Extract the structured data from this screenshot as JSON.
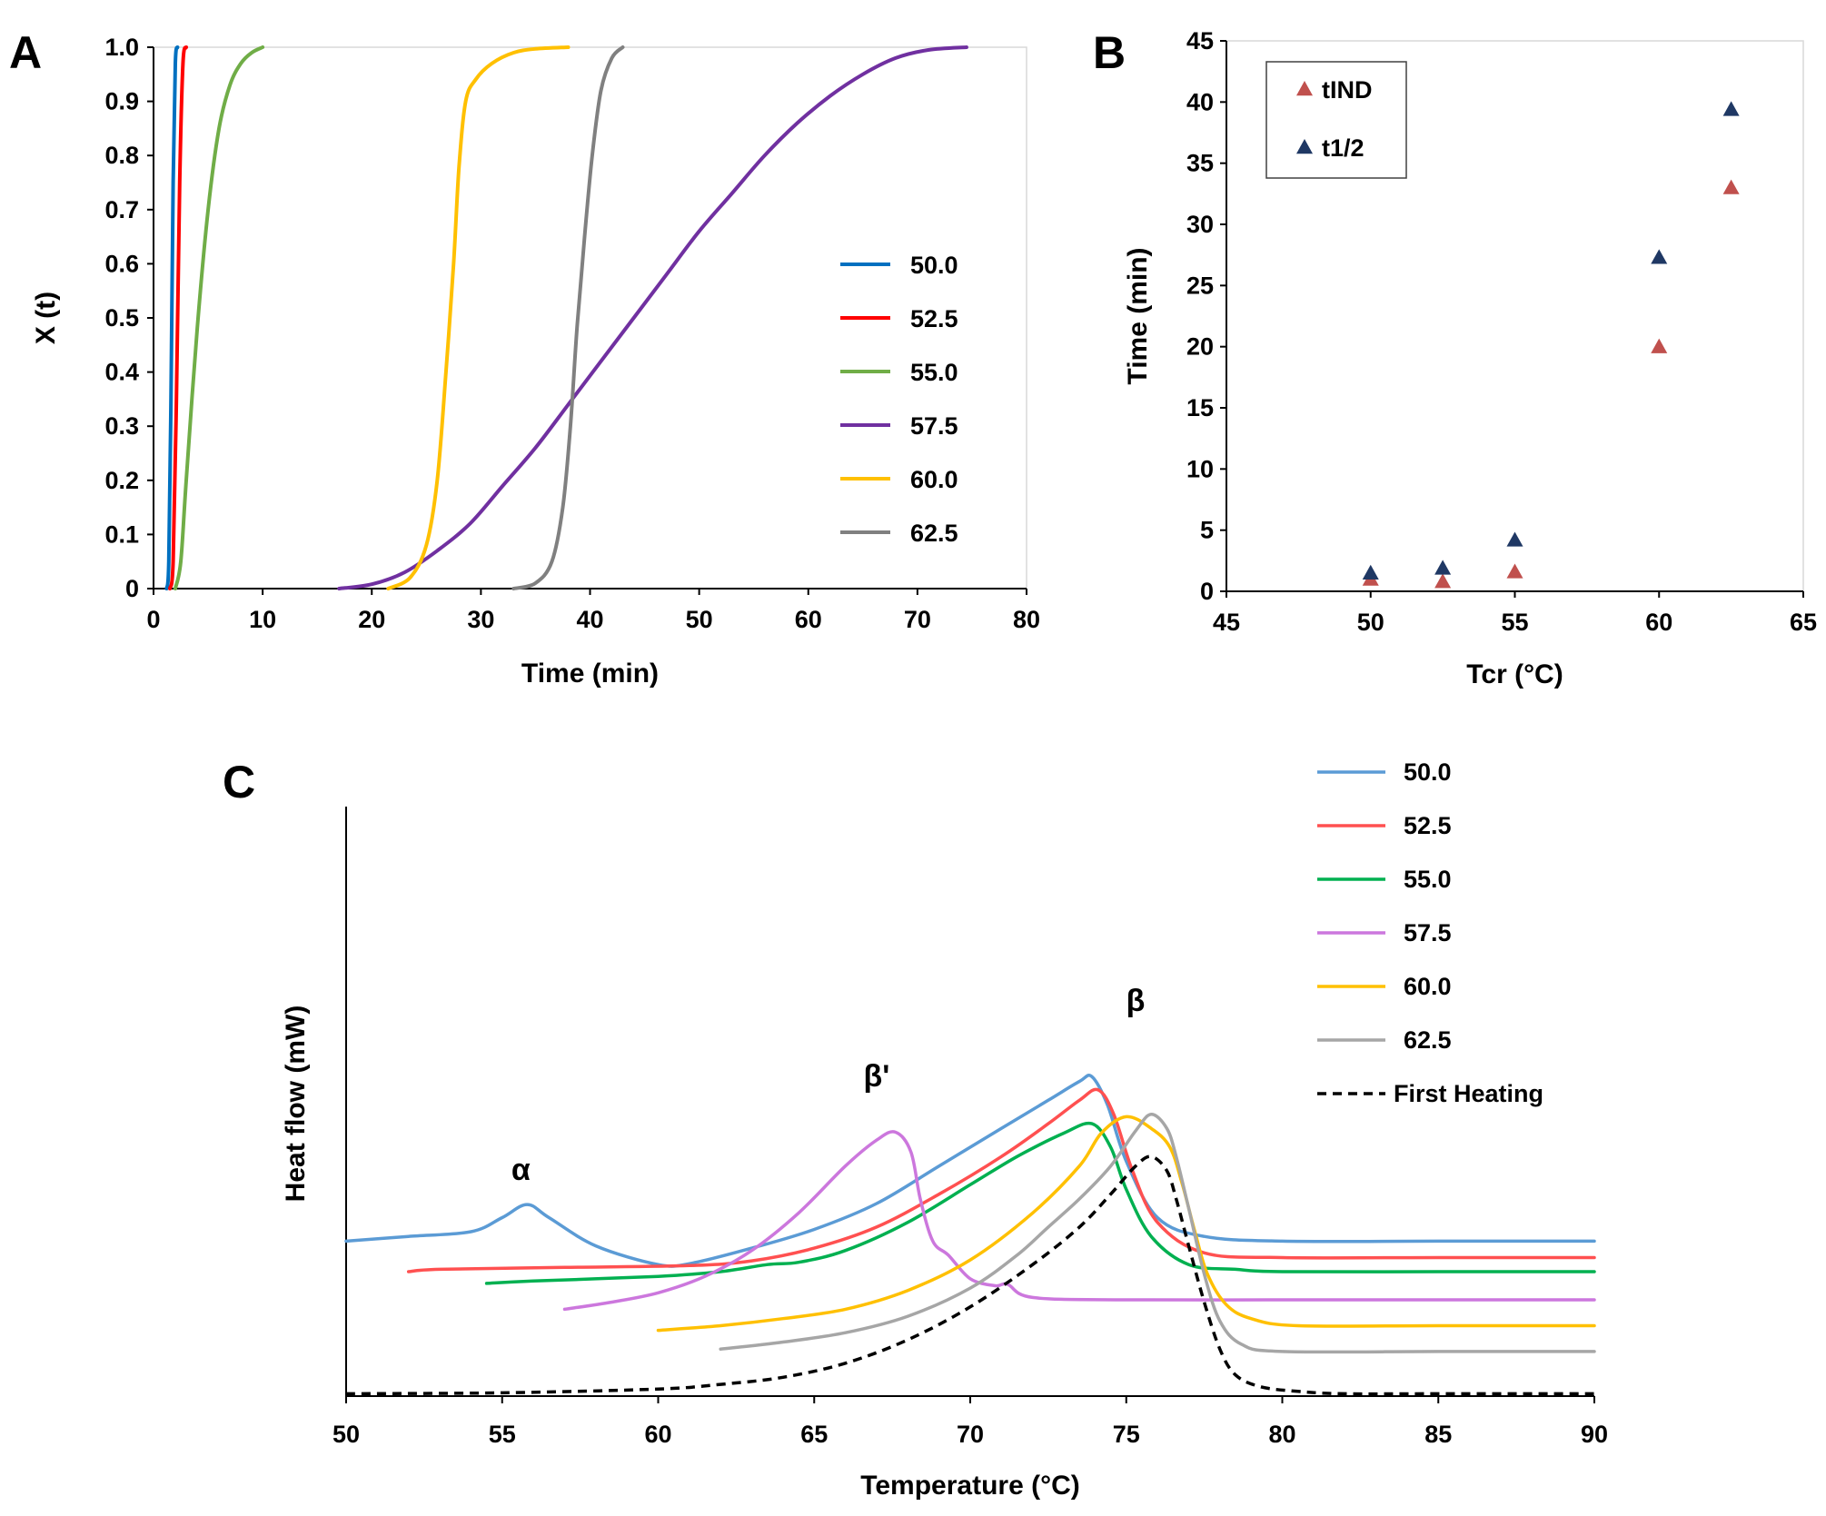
{
  "chart_data": [
    {
      "id": "A",
      "type": "line",
      "panel_label": "A",
      "xlabel": "Time (min)",
      "ylabel": "X (t)",
      "xlim": [
        0,
        80
      ],
      "ylim": [
        0,
        1
      ],
      "xticks": [
        "0",
        "10",
        "20",
        "30",
        "40",
        "50",
        "60",
        "70",
        "80"
      ],
      "yticks": [
        "0",
        "0.1",
        "0.2",
        "0.3",
        "0.4",
        "0.5",
        "0.6",
        "0.7",
        "0.8",
        "0.9",
        "1.0"
      ],
      "legend_position": "right",
      "series": [
        {
          "name": "50.0",
          "color": "#0070C0",
          "x": [
            1.2,
            1.4,
            1.6,
            1.8,
            2.0,
            2.2
          ],
          "y": [
            0,
            0.05,
            0.35,
            0.75,
            0.97,
            1.0
          ]
        },
        {
          "name": "52.5",
          "color": "#FF0000",
          "x": [
            1.5,
            1.8,
            2.1,
            2.4,
            2.7,
            3.0
          ],
          "y": [
            0,
            0.05,
            0.35,
            0.75,
            0.97,
            1.0
          ]
        },
        {
          "name": "55.0",
          "color": "#70AD47",
          "x": [
            2.0,
            2.5,
            3.0,
            4.0,
            5.0,
            6.0,
            7.0,
            8.0,
            9.0,
            10.0
          ],
          "y": [
            0,
            0.05,
            0.2,
            0.48,
            0.7,
            0.85,
            0.93,
            0.97,
            0.99,
            1.0
          ]
        },
        {
          "name": "57.5",
          "color": "#7030A0",
          "x": [
            17,
            20,
            23,
            26,
            29,
            32,
            35,
            38,
            41,
            44,
            47,
            50,
            53,
            56,
            59,
            62,
            65,
            68,
            71,
            74.5
          ],
          "y": [
            0,
            0.008,
            0.03,
            0.07,
            0.12,
            0.19,
            0.26,
            0.34,
            0.42,
            0.5,
            0.58,
            0.66,
            0.73,
            0.8,
            0.86,
            0.91,
            0.95,
            0.98,
            0.995,
            1.0
          ]
        },
        {
          "name": "60.0",
          "color": "#FFC000",
          "x": [
            21.5,
            23.5,
            25,
            26,
            26.8,
            27.5,
            28,
            28.6,
            29.5,
            31,
            33,
            35,
            38
          ],
          "y": [
            0,
            0.02,
            0.08,
            0.2,
            0.4,
            0.6,
            0.78,
            0.9,
            0.94,
            0.97,
            0.99,
            0.997,
            1.0
          ]
        },
        {
          "name": "62.5",
          "color": "#808080",
          "x": [
            33,
            35,
            36.5,
            37.5,
            38.2,
            38.8,
            39.5,
            40.2,
            41,
            42,
            43
          ],
          "y": [
            0,
            0.01,
            0.05,
            0.15,
            0.3,
            0.48,
            0.65,
            0.8,
            0.92,
            0.98,
            1.0
          ]
        }
      ]
    },
    {
      "id": "B",
      "type": "scatter",
      "panel_label": "B",
      "xlabel": "Tcr (°C)",
      "ylabel": "Time (min)",
      "xlim": [
        45,
        65
      ],
      "ylim": [
        0,
        45
      ],
      "xticks": [
        "45",
        "50",
        "55",
        "60",
        "65"
      ],
      "yticks": [
        "0",
        "5",
        "10",
        "15",
        "20",
        "25",
        "30",
        "35",
        "40",
        "45"
      ],
      "legend_position": "top-left",
      "series": [
        {
          "name": "tIND",
          "color": "#C0504D",
          "x": [
            50,
            52.5,
            55,
            60,
            62.5
          ],
          "y": [
            1.0,
            0.8,
            1.6,
            20.0,
            33.0
          ]
        },
        {
          "name": "t1/2",
          "color": "#1F3864",
          "x": [
            50,
            52.5,
            55,
            60,
            62.5
          ],
          "y": [
            1.5,
            1.9,
            4.2,
            27.3,
            39.4
          ]
        }
      ]
    },
    {
      "id": "C",
      "type": "line",
      "panel_label": "C",
      "xlabel": "Temperature (°C)",
      "ylabel": "Heat flow (mW)",
      "xlim": [
        50,
        90
      ],
      "ylim": [
        0,
        100
      ],
      "xticks": [
        "50",
        "55",
        "60",
        "65",
        "70",
        "75",
        "80",
        "85",
        "90"
      ],
      "legend_position": "top-right",
      "annotations": [
        {
          "text": "α",
          "x": 55.6,
          "y": 46
        },
        {
          "text": "β'",
          "x": 67.0,
          "y": 66
        },
        {
          "text": "β",
          "x": 75.3,
          "y": 82
        }
      ],
      "series": [
        {
          "name": "50.0",
          "color": "#5B9BD5",
          "dash": "",
          "x": [
            50,
            52,
            54,
            55,
            55.8,
            56.5,
            58,
            60,
            61,
            63,
            65,
            67,
            69,
            71,
            72.5,
            73.5,
            73.9,
            74.4,
            75,
            76,
            77.5,
            80,
            85,
            90
          ],
          "y": [
            33,
            34,
            35,
            38,
            40.8,
            38,
            32,
            28,
            28.2,
            31.5,
            35.5,
            41,
            49,
            57,
            63,
            67,
            68,
            62,
            50,
            38,
            34,
            33,
            33,
            33
          ]
        },
        {
          "name": "52.5",
          "color": "#FF5050",
          "dash": "",
          "x": [
            52,
            53,
            57,
            61,
            63,
            65,
            67,
            69,
            71,
            72.5,
            73.5,
            74.1,
            74.6,
            75.2,
            76,
            77.5,
            80,
            85,
            90
          ],
          "y": [
            26.5,
            27,
            27.4,
            27.8,
            28.8,
            31.5,
            36,
            43,
            51,
            58,
            63,
            65.2,
            60,
            48,
            37,
            30.5,
            29.5,
            29.5,
            29.5
          ]
        },
        {
          "name": "55.0",
          "color": "#00B050",
          "dash": "",
          "x": [
            54.5,
            56,
            60,
            62,
            63.5,
            64.5,
            66,
            68,
            70,
            71.5,
            73,
            73.9,
            74.5,
            75,
            75.8,
            77,
            78.5,
            80,
            85,
            90
          ],
          "y": [
            24,
            24.5,
            25.5,
            26.5,
            28,
            28.5,
            31,
            37,
            45,
            51,
            56,
            58,
            53,
            44,
            34,
            28,
            27,
            26.5,
            26.5,
            26.5
          ]
        },
        {
          "name": "57.5",
          "color": "#CC77DD",
          "dash": "",
          "x": [
            57,
            58.5,
            60,
            61.5,
            63,
            64.5,
            66,
            67,
            67.6,
            68.1,
            68.4,
            68.8,
            69.3,
            70,
            70.8,
            71.2,
            72,
            75,
            80,
            85,
            90
          ],
          "y": [
            18.5,
            20,
            22,
            25.5,
            31,
            39,
            49,
            54.5,
            56.2,
            52,
            42,
            33,
            30,
            25,
            23.5,
            23.8,
            21,
            20.5,
            20.5,
            20.5,
            20.5
          ]
        },
        {
          "name": "60.0",
          "color": "#FFC000",
          "dash": "",
          "x": [
            60,
            62,
            64,
            66,
            68,
            70,
            72,
            73.5,
            74.2,
            75,
            75.8,
            76.4,
            76.8,
            77.2,
            77.6,
            78.2,
            79,
            80.5,
            85,
            90
          ],
          "y": [
            14,
            15,
            16.5,
            18.5,
            22.5,
            29,
            39,
            49,
            56,
            59.5,
            57,
            53,
            45,
            35,
            26,
            19.5,
            16.5,
            15,
            15,
            15
          ]
        },
        {
          "name": "62.5",
          "color": "#A6A6A6",
          "dash": "",
          "x": [
            62,
            64,
            66,
            68,
            70,
            71.5,
            72.5,
            73.5,
            74.5,
            75.3,
            75.8,
            76.3,
            76.6,
            77,
            77.5,
            78,
            78.7,
            80,
            85,
            90
          ],
          "y": [
            10,
            11.5,
            13.5,
            17,
            23,
            30,
            36,
            42,
            49,
            56.5,
            60,
            57,
            51,
            40,
            26,
            16,
            11,
            9.5,
            9.5,
            9.5
          ]
        },
        {
          "name": "First Heating",
          "color": "#000000",
          "dash": "10,7",
          "x": [
            50,
            55,
            60,
            62,
            64,
            66,
            68,
            70,
            72,
            73.5,
            74.5,
            75.3,
            75.8,
            76.3,
            76.6,
            77,
            77.5,
            78,
            78.5,
            79.3,
            80.5,
            82,
            85,
            90
          ],
          "y": [
            0.5,
            0.7,
            1.5,
            2.5,
            4,
            7,
            12,
            19,
            28,
            36,
            43,
            49,
            51,
            48,
            42,
            32,
            20,
            10,
            4.5,
            2,
            1,
            0.5,
            0.5,
            0.5
          ]
        }
      ]
    }
  ]
}
